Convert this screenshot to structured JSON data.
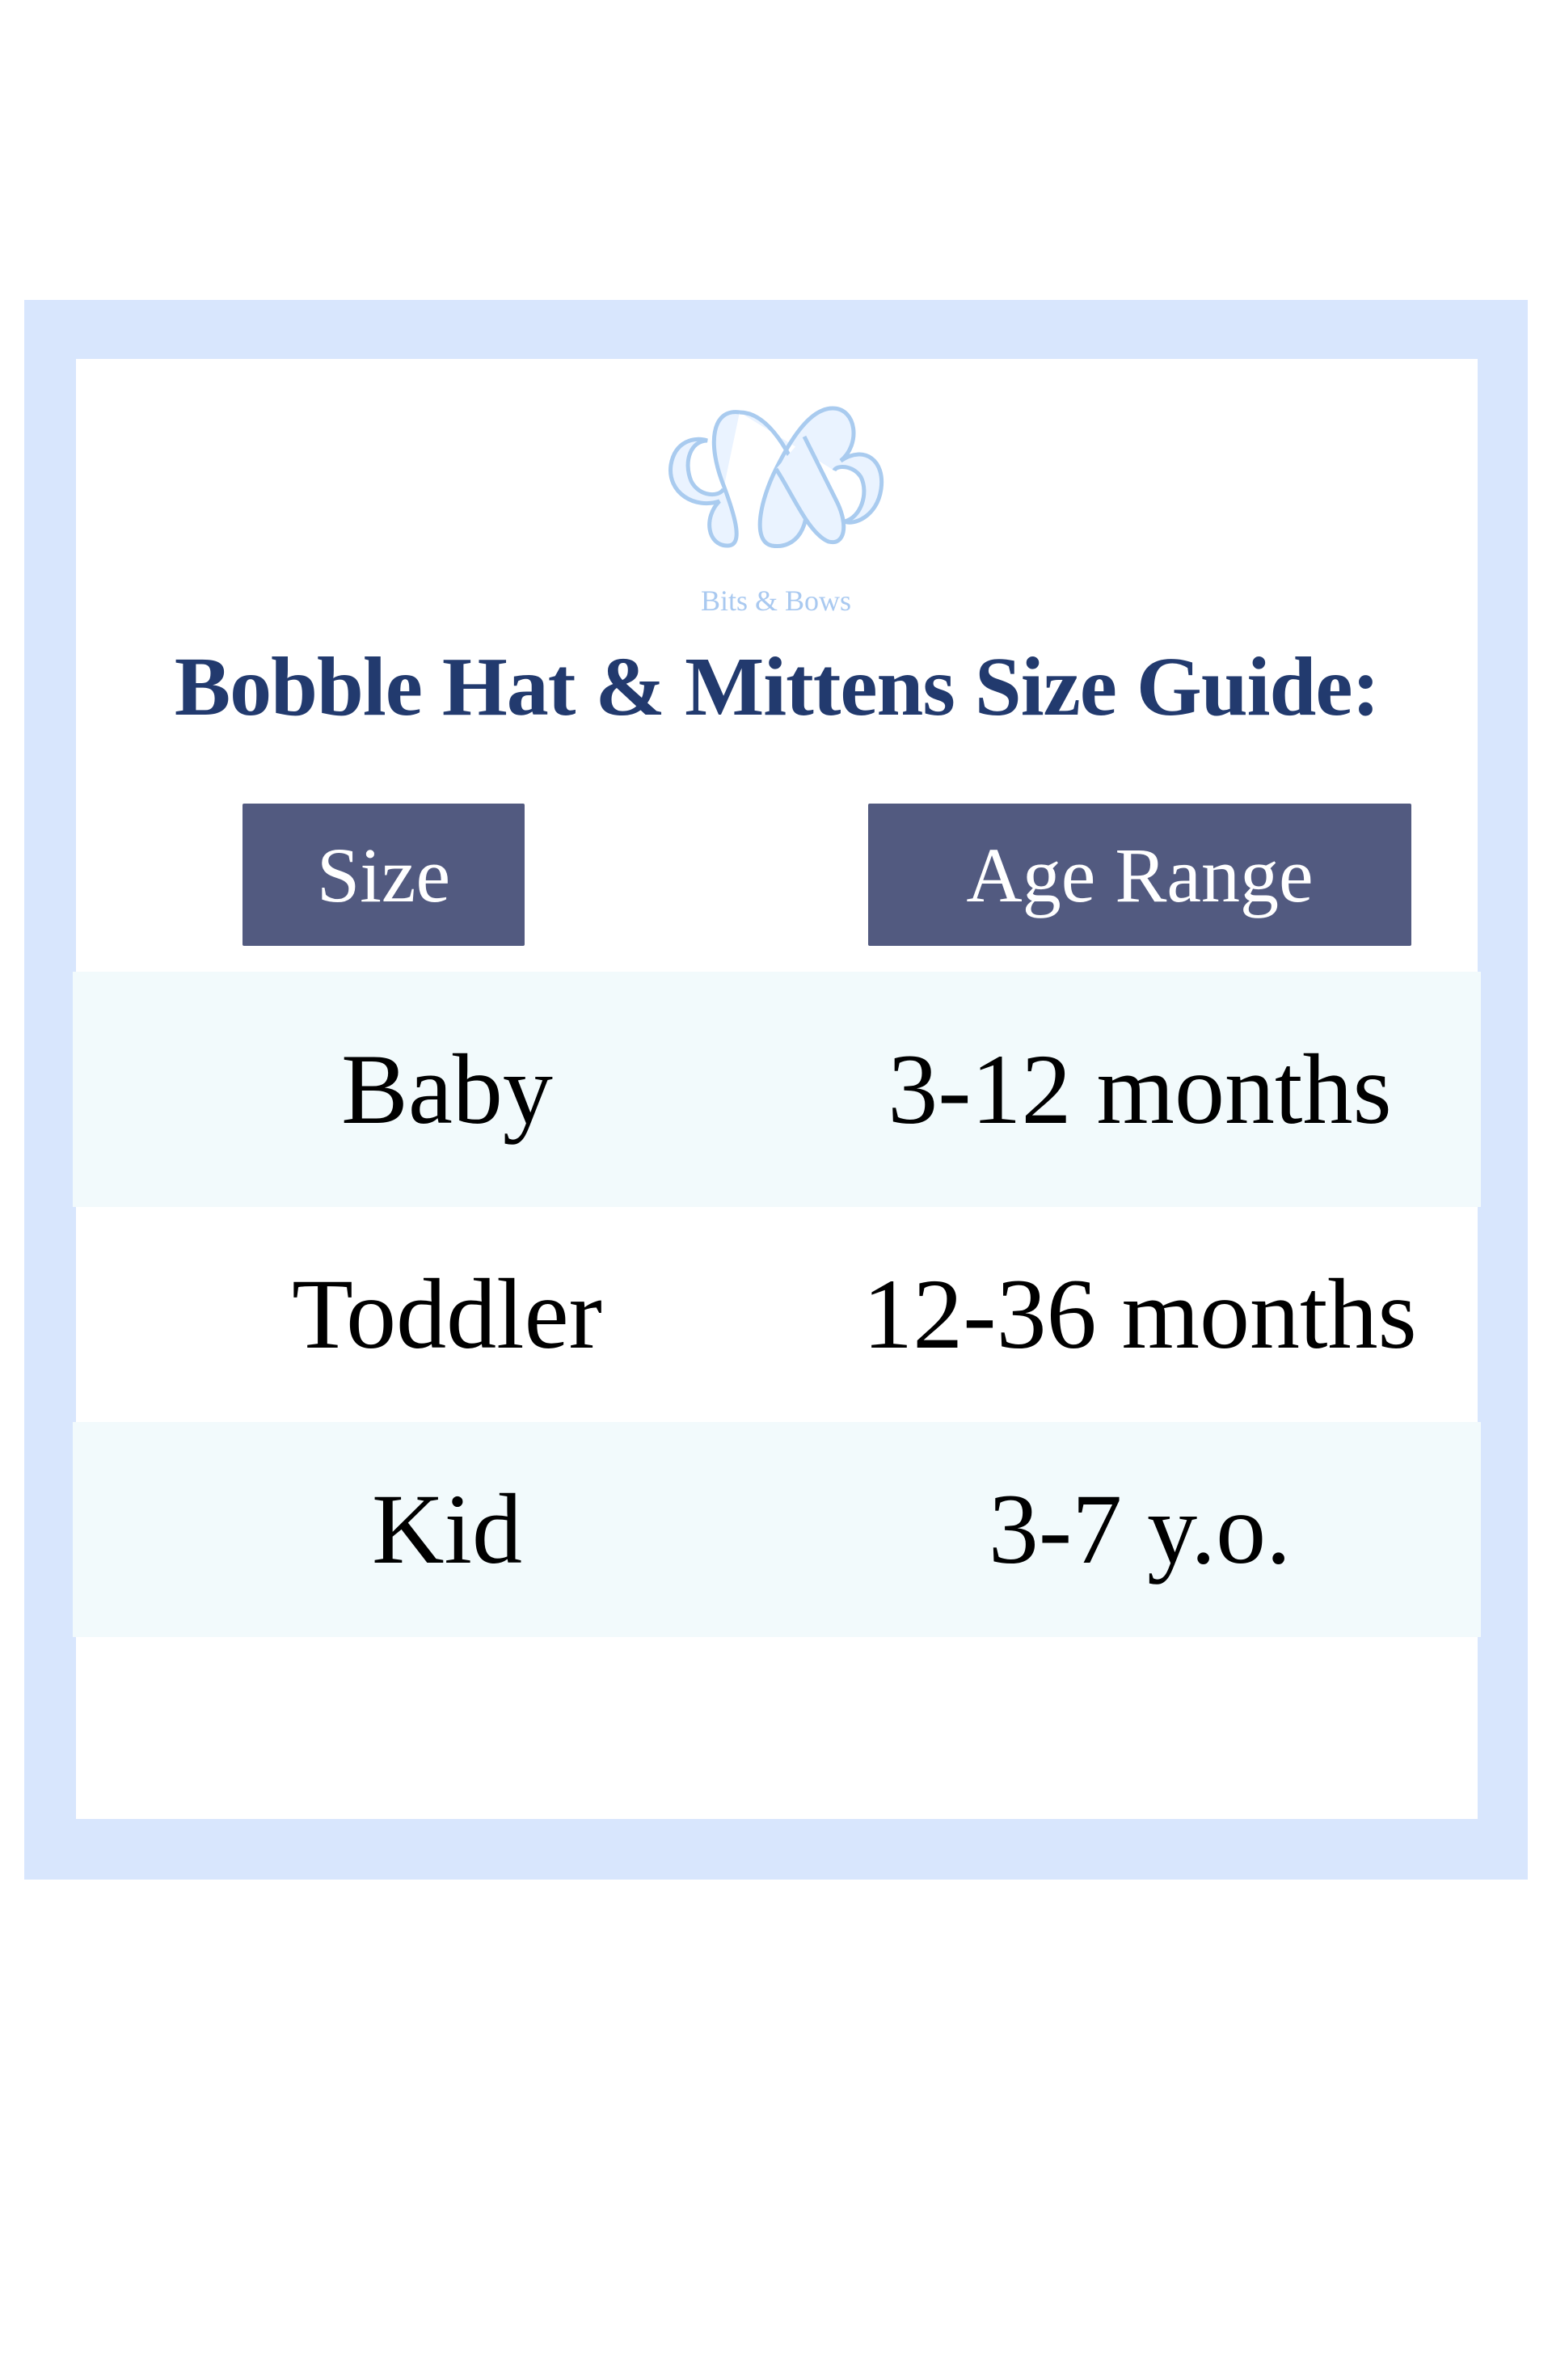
{
  "brand": {
    "name": "Bits & Bows",
    "logo_icon": "bb-monogram-logo",
    "logo_color": "#a9c9f0"
  },
  "title": "Bobble Hat & Mittens Size Guide:",
  "table": {
    "headers": [
      "Size",
      "Age Range"
    ],
    "rows": [
      {
        "size": "Baby",
        "age": "3-12 months"
      },
      {
        "size": "Toddler",
        "age": "12-36 months"
      },
      {
        "size": "Kid",
        "age": "3-7 y.o."
      }
    ]
  },
  "colors": {
    "frame": "#d8e6fd",
    "title": "#223a6e",
    "header_bg": "#525a80",
    "row_shade": "#f2fafc"
  }
}
